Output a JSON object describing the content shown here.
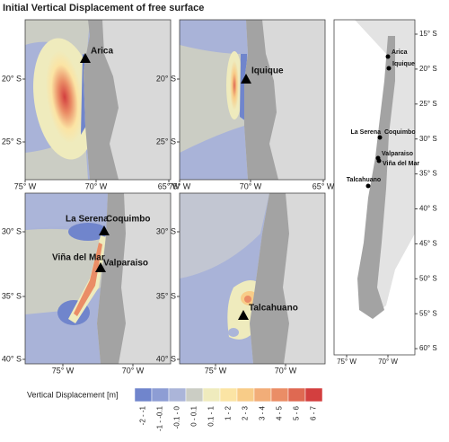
{
  "title": "Initial Vertical Displacement of free surface",
  "panels": [
    {
      "yticks": [
        "20° S",
        "25° S"
      ],
      "xticks": [
        "75° W",
        "70° W",
        "65° W"
      ],
      "cities": [
        "Arica"
      ]
    },
    {
      "yticks": [
        "20° S",
        "25° S"
      ],
      "xticks": [
        "75° W",
        "70° W",
        "65° W"
      ],
      "cities": [
        "Iquique"
      ]
    },
    {
      "yticks": [
        "30° S",
        "35° S",
        "40° S"
      ],
      "xticks": [
        "75° W",
        "70° W"
      ],
      "cities": [
        "La Serena",
        "Coquimbo",
        "Viña del Mar",
        "Valparaiso"
      ]
    },
    {
      "yticks": [
        "30° S",
        "35° S",
        "40° S"
      ],
      "xticks": [
        "75° W",
        "70° W"
      ],
      "cities": [
        "Talcahuano"
      ]
    }
  ],
  "overview": {
    "yticks": [
      "15° S",
      "20° S",
      "25° S",
      "30° S",
      "35° S",
      "40° S",
      "45° S",
      "50° S",
      "55° S",
      "60° S"
    ],
    "xticks": [
      "75° W",
      "70° W"
    ],
    "cities": [
      "Arica",
      "Iquique",
      "La Serena",
      "Coquimbo",
      "Valparaiso",
      "Viña del Mar",
      "Talcahuano"
    ]
  },
  "legend": {
    "title": "Vertical Displacement [m]",
    "classes": [
      {
        "label": "-2 - -1",
        "color": "#7085cc"
      },
      {
        "label": "-1 - -0.1",
        "color": "#8d9dd4"
      },
      {
        "label": "-0.1 - 0",
        "color": "#abb5d9"
      },
      {
        "label": "0 - 0.1",
        "color": "#cbcdc4"
      },
      {
        "label": "0.1 - 1",
        "color": "#efebbd"
      },
      {
        "label": "1 - 2",
        "color": "#fbe4a4"
      },
      {
        "label": "2 - 3",
        "color": "#f8cc88"
      },
      {
        "label": "3 - 4",
        "color": "#f2ad78"
      },
      {
        "label": "4 - 5",
        "color": "#ea8d66"
      },
      {
        "label": "5 - 6",
        "color": "#df6952"
      },
      {
        "label": "6 - 7",
        "color": "#d33f3f"
      }
    ]
  }
}
